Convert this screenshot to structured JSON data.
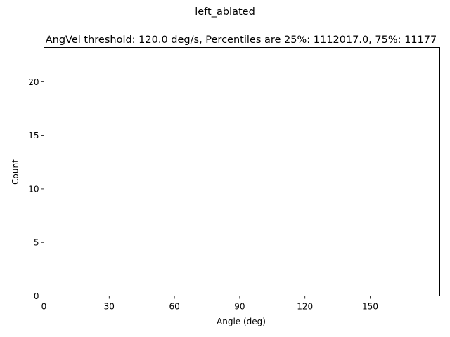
{
  "chart_data": {
    "type": "bar",
    "suptitle": "left_ablated",
    "title": "AngVel threshold: 120.0 deg/s, Percentiles are 25%: 1112017.0, 75%: 11177",
    "xlabel": "Angle (deg)",
    "ylabel": "Count",
    "xlim": [
      0,
      182
    ],
    "ylim": [
      0,
      23.2
    ],
    "xticks": [
      0,
      30,
      60,
      90,
      120,
      150
    ],
    "yticks": [
      0,
      5,
      10,
      15,
      20
    ],
    "series": [],
    "grid": false,
    "legend": false
  }
}
